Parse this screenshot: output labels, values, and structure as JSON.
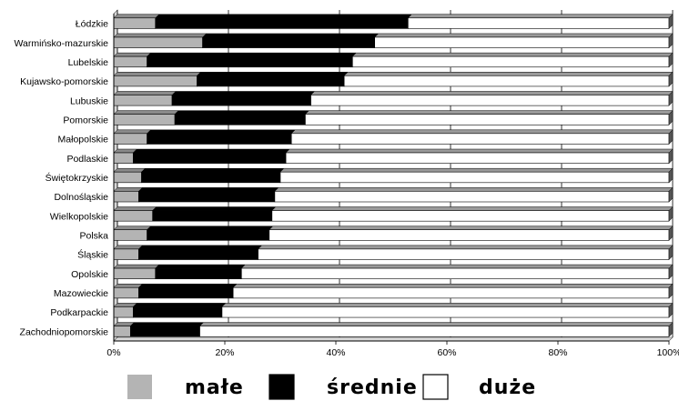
{
  "chart_data": {
    "type": "bar",
    "orientation": "horizontal",
    "stacked": "percent",
    "categories": [
      "Łódzkie",
      "Warmińsko-mazurskie",
      "Lubelskie",
      "Kujawsko-pomorskie",
      "Lubuskie",
      "Pomorskie",
      "Małopolskie",
      "Podlaskie",
      "Świętokrzyskie",
      "Dolnośląskie",
      "Wielkopolskie",
      "Polska",
      "Śląskie",
      "Opolskie",
      "Mazowieckie",
      "Podkarpackie",
      "Zachodniopomorskie"
    ],
    "series": [
      {
        "name": "małe",
        "color": "#b4b4b4",
        "values": [
          7.5,
          16.0,
          6.0,
          15.0,
          10.5,
          11.0,
          6.0,
          3.5,
          5.0,
          4.5,
          7.0,
          6.0,
          4.5,
          7.5,
          4.5,
          3.5,
          3.0
        ]
      },
      {
        "name": "średnie",
        "color": "#000000",
        "values": [
          45.5,
          31.0,
          37.0,
          26.5,
          25.0,
          23.5,
          26.0,
          27.5,
          25.0,
          24.5,
          21.5,
          22.0,
          21.5,
          15.5,
          17.0,
          16.0,
          12.5
        ]
      },
      {
        "name": "duże",
        "color": "#ffffff",
        "values": [
          47.0,
          53.0,
          57.0,
          58.5,
          64.5,
          65.5,
          68.0,
          69.0,
          70.0,
          71.0,
          71.5,
          72.0,
          74.0,
          77.0,
          78.5,
          80.5,
          84.5
        ]
      }
    ],
    "x_ticks": [
      "0%",
      "20%",
      "40%",
      "60%",
      "80%",
      "100%"
    ],
    "xlim": [
      0,
      100
    ],
    "grid": true,
    "legend_position": "bottom"
  }
}
